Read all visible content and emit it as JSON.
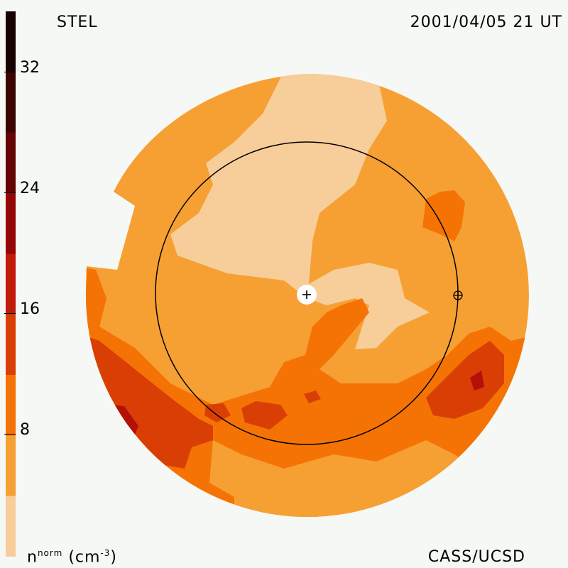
{
  "title": "STEL",
  "timestamp": "2001/04/05 21 UT",
  "credit": "CASS/UCSD",
  "colorbar": {
    "unit": {
      "base": "n",
      "sup": "norm",
      "units": "(cm",
      "units_sup": "-3",
      "close": ")"
    },
    "ticks": [
      "8",
      "16",
      "24",
      "32"
    ],
    "bands": [
      "#f7cd9a",
      "#f6a034",
      "#f57305",
      "#d93f05",
      "#c01c08",
      "#950606",
      "#640505",
      "#3c0303",
      "#1a0101"
    ]
  },
  "colors": {
    "pale": "#f7cd9a",
    "light": "#f6a034",
    "orange": "#f57305",
    "red_orange": "#d93f05",
    "red": "#b31008",
    "background": "#f5f8f4"
  },
  "markers": {
    "sun": "plus-marker",
    "earth": "circled-plus-marker"
  }
}
